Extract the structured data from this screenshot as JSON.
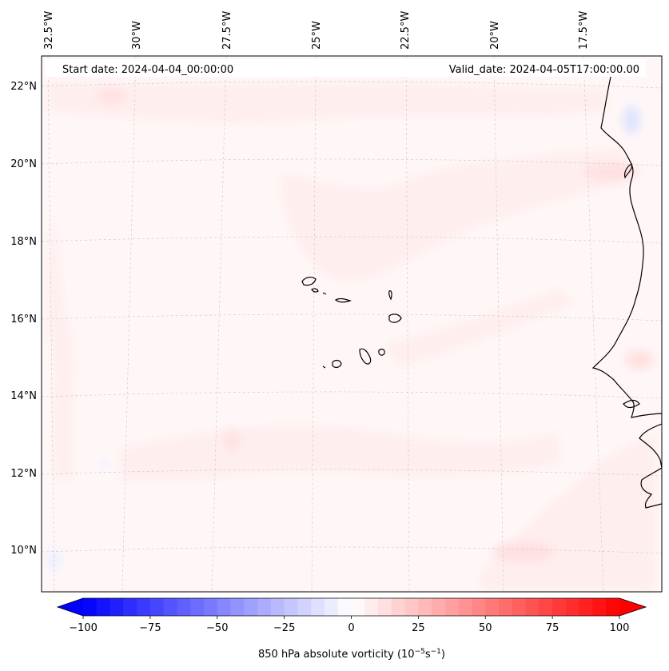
{
  "header": {
    "start_date": "Start date: 2024-04-04_00:00:00",
    "valid_date": "Valid_date: 2024-04-05T17:00:00.00"
  },
  "map": {
    "lon_labels": [
      "32.5°W",
      "30°W",
      "27.5°W",
      "25°W",
      "22.5°W",
      "20°W",
      "17.5°W"
    ],
    "lat_labels": [
      "22°N",
      "20°N",
      "18°N",
      "16°N",
      "14°N",
      "12°N",
      "10°N"
    ],
    "gridlines": "on",
    "field_colors": {
      "background": "#fff7f7",
      "weak_positive": "#ffeeee",
      "moderate_positive": "#ffe0e0",
      "weak_negative": "#eef0ff",
      "moderate_negative": "#dde2ff"
    },
    "coastline_color": "#000000"
  },
  "colorbar": {
    "label": "850 hPa absolute vorticity (10",
    "label_exp1": "−5",
    "label_mid": "s",
    "label_exp2": "−1",
    "label_end": ")",
    "tick_labels": [
      "−100",
      "−75",
      "−50",
      "−25",
      "0",
      "25",
      "50",
      "75",
      "100"
    ],
    "range": [
      -100,
      100
    ],
    "colors": {
      "min": "#0000ff",
      "center": "#ffffff",
      "max": "#ff0000"
    },
    "extend": "both"
  }
}
